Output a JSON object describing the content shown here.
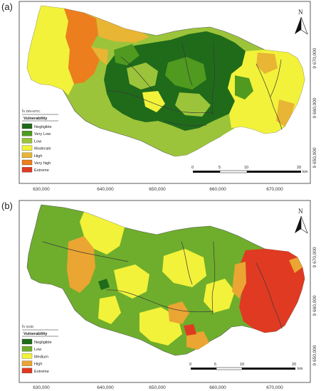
{
  "panels": [
    {
      "label": "(a)",
      "legend_title_prefix": "I",
      "legend_title_sub": "V DRASTIC",
      "legend_subtitle": "Vulnerability",
      "legend": [
        {
          "label": "Negligible",
          "color": "#1f6b1a"
        },
        {
          "label": "Very Low",
          "color": "#4f9a1f"
        },
        {
          "label": "Low",
          "color": "#9cc43a"
        },
        {
          "label": "Moderate",
          "color": "#f2f23a"
        },
        {
          "label": "High",
          "color": "#e8b534"
        },
        {
          "label": "Very high",
          "color": "#ec7e1e"
        },
        {
          "label": "Extreme",
          "color": "#e03a22"
        }
      ],
      "x_ticks": [
        "630,000",
        "640,000",
        "650,000",
        "660,000",
        "670,000"
      ],
      "y_ticks": [
        "9 670,000",
        "9 660,000",
        "9 650,000"
      ],
      "scale_labels": [
        "0",
        "5",
        "10",
        "20"
      ],
      "scale_unit": "km",
      "north_label": "N"
    },
    {
      "label": "(b)",
      "legend_title_prefix": "I",
      "legend_title_sub": "V GOD",
      "legend_subtitle": "Vulnerability",
      "legend": [
        {
          "label": "Negligible",
          "color": "#1f6b1a"
        },
        {
          "label": "Low",
          "color": "#6fae2c"
        },
        {
          "label": "Medium",
          "color": "#f2f23a"
        },
        {
          "label": "High",
          "color": "#eaa532"
        },
        {
          "label": "Extreme",
          "color": "#e03a22"
        }
      ],
      "x_ticks": [
        "630,000",
        "640,000",
        "650,000",
        "660,000",
        "670,000"
      ],
      "y_ticks": [
        "9 670,000",
        "9 660,000",
        "9 650,000"
      ],
      "scale_labels": [
        "0",
        "5",
        "10",
        "20"
      ],
      "scale_unit": "km",
      "north_label": "N"
    }
  ]
}
